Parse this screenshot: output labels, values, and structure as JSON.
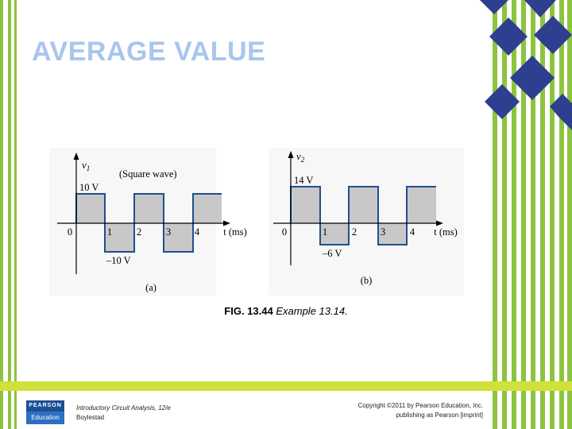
{
  "slide": {
    "title": "AVERAGE VALUE",
    "caption": {
      "figure": "FIG. 13.44",
      "text": "Example 13.14."
    },
    "footer": {
      "logo_top": "PEARSON",
      "logo_bottom": "Education",
      "book_title": "Introductory Circuit Analysis, 12/e",
      "book_author": "Boylestad",
      "copyright_line1": "Copyright ©2011 by Pearson Education, Inc.",
      "copyright_line2": "publishing as Pearson [imprint]"
    }
  },
  "diagrams": [
    {
      "id": "a",
      "y_label": "v",
      "y_subscript": "1",
      "annotation": "(Square wave)",
      "high_label": "10 V",
      "low_label": "–10 V",
      "high": 10,
      "low": -10,
      "x_label": "t (ms)",
      "ticks": [
        "0",
        "1",
        "2",
        "3",
        "4"
      ],
      "sublabel": "(a)"
    },
    {
      "id": "b",
      "y_label": "v",
      "y_subscript": "2",
      "high_label": "14 V",
      "low_label": "–6  V",
      "high": 14,
      "low": -6,
      "x_label": "t (ms)",
      "ticks": [
        "0",
        "1",
        "2",
        "3",
        "4"
      ],
      "sublabel": "(b)"
    }
  ],
  "colors": {
    "waveform_fill": "#c8c8c8",
    "waveform_line": "#1f4f8f",
    "title": "#a9c6ec",
    "stripe_green": "#8cc43f",
    "diamond_blue": "#2e3f8f",
    "footer_band": "#cfe13a"
  }
}
